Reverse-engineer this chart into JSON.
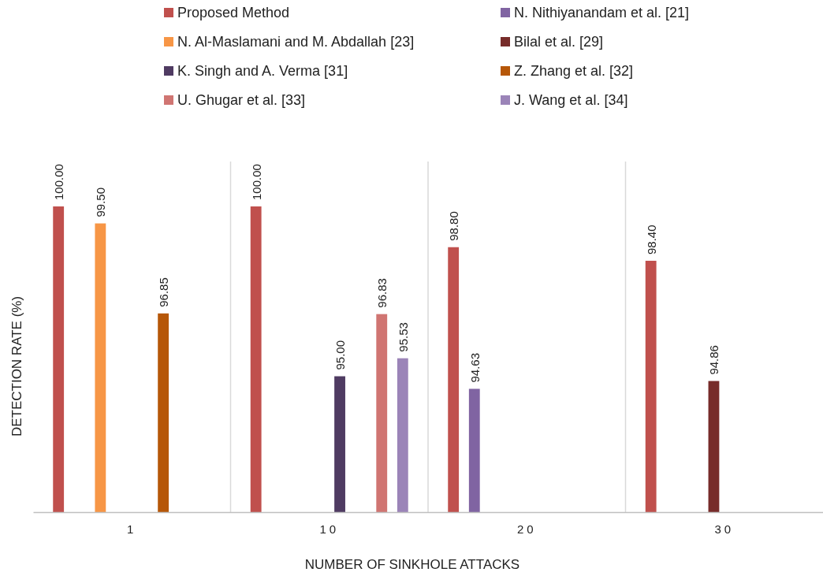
{
  "chart_data": {
    "type": "bar",
    "xlabel": "NUMBER OF SINKHOLE ATTACKS",
    "ylabel": "DETECTION RATE (%)",
    "categories": [
      "1",
      "10",
      "20",
      "30"
    ],
    "series": [
      {
        "name": "Proposed Method",
        "color": "#c0504d",
        "values": [
          100.0,
          100.0,
          98.8,
          98.4
        ],
        "value_labels": [
          "100.00",
          "100.00",
          "98.80",
          "98.40"
        ]
      },
      {
        "name": "N. Nithiyanandam et al. [21]",
        "color": "#8064a2",
        "values": [
          null,
          null,
          94.63,
          null
        ],
        "value_labels": [
          null,
          null,
          "94.63",
          null
        ]
      },
      {
        "name": "N. Al-Maslamani and M. Abdallah [23]",
        "color": "#f79646",
        "values": [
          99.5,
          null,
          null,
          null
        ],
        "value_labels": [
          "99.50",
          null,
          null,
          null
        ]
      },
      {
        "name": "Bilal et al. [29]",
        "color": "#772c2a",
        "values": [
          null,
          null,
          null,
          94.86
        ],
        "value_labels": [
          null,
          null,
          null,
          "94.86"
        ]
      },
      {
        "name": "K. Singh and A. Verma [31]",
        "color": "#4f3b62",
        "values": [
          null,
          95.0,
          null,
          null
        ],
        "value_labels": [
          null,
          "95.00",
          null,
          null
        ]
      },
      {
        "name": "Z. Zhang et al. [32]",
        "color": "#b65708",
        "values": [
          96.85,
          null,
          null,
          null
        ],
        "value_labels": [
          "96.85",
          null,
          null,
          null
        ]
      },
      {
        "name": "U. Ghugar et al. [33]",
        "color": "#d07572",
        "values": [
          null,
          96.83,
          null,
          null
        ],
        "value_labels": [
          null,
          "96.83",
          null,
          null
        ]
      },
      {
        "name": "J. Wang et al. [34]",
        "color": "#9b84b8",
        "values": [
          null,
          95.53,
          null,
          null
        ],
        "value_labels": [
          null,
          "95.53",
          null,
          null
        ]
      }
    ],
    "ylim": [
      91,
      100
    ],
    "tick_labels": "x",
    "grid": "x",
    "legend": "top"
  }
}
